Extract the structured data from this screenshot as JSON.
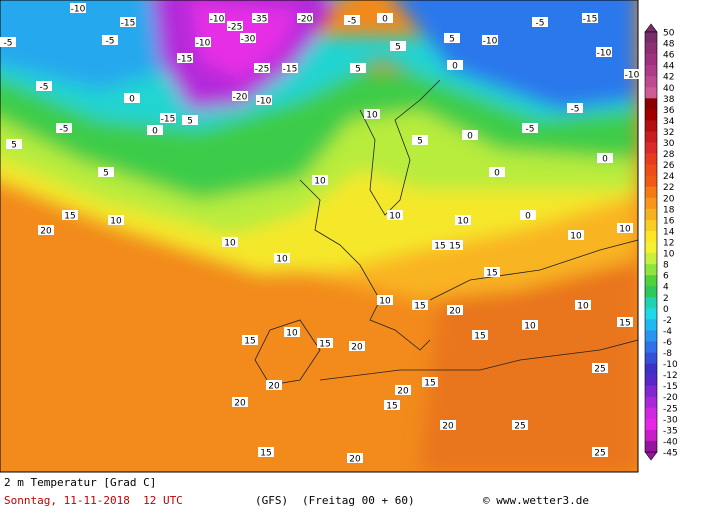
{
  "map_labels": [
    -10,
    -15,
    -5,
    -5,
    -10,
    -10,
    -25,
    -35,
    -20,
    -5,
    0,
    5,
    -10,
    -5,
    -15,
    -10,
    -10,
    -15,
    -30,
    -25,
    -15,
    -20,
    -10,
    -15,
    5,
    -5,
    -5,
    0,
    0,
    5,
    5,
    5,
    5,
    0,
    10,
    5,
    0,
    -5,
    -5,
    0,
    0,
    10,
    15,
    20,
    10,
    10,
    10,
    10,
    10,
    0,
    10,
    10,
    15,
    15,
    15,
    10,
    15,
    20,
    15,
    10,
    10,
    15,
    10,
    15,
    15,
    20,
    20,
    20,
    20,
    25,
    25,
    25,
    20,
    20,
    15,
    15,
    15
  ],
  "colorbar": {
    "labels": [
      50,
      48,
      46,
      44,
      42,
      40,
      38,
      36,
      34,
      32,
      30,
      28,
      26,
      24,
      22,
      20,
      18,
      16,
      14,
      12,
      10,
      8,
      6,
      4,
      2,
      0,
      -2,
      -4,
      -6,
      -8,
      -10,
      -12,
      -15,
      -20,
      -25,
      -30,
      -35,
      -40,
      -45
    ],
    "colors": [
      "#7b2c6c",
      "#8e2f72",
      "#a03080",
      "#b03a8a",
      "#c04a90",
      "#cf5a98",
      "#8b0000",
      "#a00000",
      "#b51010",
      "#c81e1e",
      "#dc2a2a",
      "#e83c1e",
      "#ee4c18",
      "#f05a14",
      "#f57a14",
      "#f7961a",
      "#f9b020",
      "#fbcc22",
      "#fde628",
      "#f4f230",
      "#c8f03c",
      "#8ee63c",
      "#50d23c",
      "#2cc85a",
      "#20d2b4",
      "#20d8e6",
      "#20b8f0",
      "#2896f0",
      "#3070e8",
      "#3450d8",
      "#3c32c8",
      "#5a28c8",
      "#8228d0",
      "#aa28d8",
      "#d028e0",
      "#e628e6",
      "#c81ec8",
      "#9614a0"
    ]
  },
  "footer": {
    "variable": "2 m Temperatur [Grad C]",
    "date": "Sonntag, 11-11-2018  12 UTC",
    "model": "(GFS)",
    "run": "(Freitag 00 + 60)",
    "source": "© www.wetter3.de"
  }
}
